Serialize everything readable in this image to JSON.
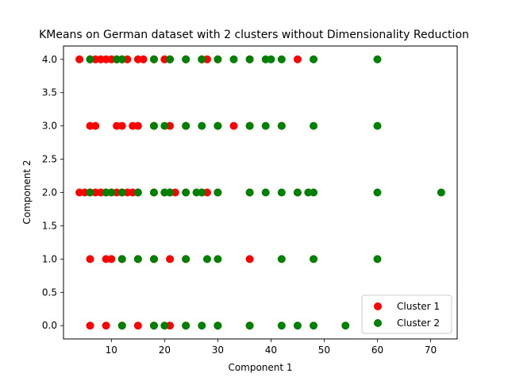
{
  "chart_data": {
    "type": "scatter",
    "title": "KMeans on German dataset with 2 clusters without Dimensionality Reduction",
    "xlabel": "Component 1",
    "ylabel": "Component 2",
    "xlim": [
      1.0,
      75.0
    ],
    "ylim": [
      -0.2,
      4.2
    ],
    "xticks": [
      10,
      20,
      30,
      40,
      50,
      60,
      70
    ],
    "yticks": [
      0.0,
      0.5,
      1.0,
      1.5,
      2.0,
      2.5,
      3.0,
      3.5,
      4.0
    ],
    "xtick_labels": [
      "10",
      "20",
      "30",
      "40",
      "50",
      "60",
      "70"
    ],
    "ytick_labels": [
      "0.0",
      "0.5",
      "1.0",
      "1.5",
      "2.0",
      "2.5",
      "3.0",
      "3.5",
      "4.0"
    ],
    "grid": false,
    "legend_position": "lower right",
    "series": [
      {
        "name": "Cluster 1",
        "color": "#ff0000",
        "points": [
          [
            4,
            4
          ],
          [
            6,
            4
          ],
          [
            7,
            4
          ],
          [
            8,
            4
          ],
          [
            9,
            4
          ],
          [
            10,
            4
          ],
          [
            11,
            4
          ],
          [
            12,
            4
          ],
          [
            13,
            4
          ],
          [
            15,
            4
          ],
          [
            16,
            4
          ],
          [
            18,
            4
          ],
          [
            20,
            4
          ],
          [
            21,
            4
          ],
          [
            24,
            4
          ],
          [
            27,
            4
          ],
          [
            28,
            4
          ],
          [
            30,
            4
          ],
          [
            36,
            4
          ],
          [
            45,
            4
          ],
          [
            6,
            3
          ],
          [
            7,
            3
          ],
          [
            11,
            3
          ],
          [
            12,
            3
          ],
          [
            14,
            3
          ],
          [
            15,
            3
          ],
          [
            18,
            3
          ],
          [
            21,
            3
          ],
          [
            24,
            3
          ],
          [
            30,
            3
          ],
          [
            33,
            3
          ],
          [
            36,
            3
          ],
          [
            42,
            3
          ],
          [
            4,
            2
          ],
          [
            5,
            2
          ],
          [
            6,
            2
          ],
          [
            7,
            2
          ],
          [
            8,
            2
          ],
          [
            9,
            2
          ],
          [
            10,
            2
          ],
          [
            11,
            2
          ],
          [
            12,
            2
          ],
          [
            13,
            2
          ],
          [
            14,
            2
          ],
          [
            15,
            2
          ],
          [
            18,
            2
          ],
          [
            20,
            2
          ],
          [
            21,
            2
          ],
          [
            22,
            2
          ],
          [
            24,
            2
          ],
          [
            27,
            2
          ],
          [
            28,
            2
          ],
          [
            30,
            2
          ],
          [
            36,
            2
          ],
          [
            45,
            2
          ],
          [
            6,
            1
          ],
          [
            9,
            1
          ],
          [
            10,
            1
          ],
          [
            12,
            1
          ],
          [
            15,
            1
          ],
          [
            18,
            1
          ],
          [
            21,
            1
          ],
          [
            24,
            1
          ],
          [
            36,
            1
          ],
          [
            6,
            0
          ],
          [
            9,
            0
          ],
          [
            12,
            0
          ],
          [
            15,
            0
          ],
          [
            18,
            0
          ],
          [
            21,
            0
          ],
          [
            24,
            0
          ],
          [
            30,
            0
          ],
          [
            36,
            0
          ]
        ]
      },
      {
        "name": "Cluster 2",
        "color": "#008000",
        "points": [
          [
            6,
            4
          ],
          [
            11,
            4
          ],
          [
            12,
            4
          ],
          [
            18,
            4
          ],
          [
            21,
            4
          ],
          [
            24,
            4
          ],
          [
            27,
            4
          ],
          [
            30,
            4
          ],
          [
            33,
            4
          ],
          [
            36,
            4
          ],
          [
            39,
            4
          ],
          [
            40,
            4
          ],
          [
            42,
            4
          ],
          [
            48,
            4
          ],
          [
            60,
            4
          ],
          [
            18,
            3
          ],
          [
            20,
            3
          ],
          [
            24,
            3
          ],
          [
            27,
            3
          ],
          [
            30,
            3
          ],
          [
            36,
            3
          ],
          [
            39,
            3
          ],
          [
            42,
            3
          ],
          [
            48,
            3
          ],
          [
            60,
            3
          ],
          [
            6,
            2
          ],
          [
            9,
            2
          ],
          [
            10,
            2
          ],
          [
            12,
            2
          ],
          [
            15,
            2
          ],
          [
            18,
            2
          ],
          [
            20,
            2
          ],
          [
            21,
            2
          ],
          [
            24,
            2
          ],
          [
            26,
            2
          ],
          [
            27,
            2
          ],
          [
            30,
            2
          ],
          [
            36,
            2
          ],
          [
            39,
            2
          ],
          [
            42,
            2
          ],
          [
            45,
            2
          ],
          [
            47,
            2
          ],
          [
            48,
            2
          ],
          [
            60,
            2
          ],
          [
            72,
            2
          ],
          [
            12,
            1
          ],
          [
            15,
            1
          ],
          [
            18,
            1
          ],
          [
            24,
            1
          ],
          [
            28,
            1
          ],
          [
            30,
            1
          ],
          [
            42,
            1
          ],
          [
            48,
            1
          ],
          [
            60,
            1
          ],
          [
            12,
            0
          ],
          [
            18,
            0
          ],
          [
            20,
            0
          ],
          [
            24,
            0
          ],
          [
            27,
            0
          ],
          [
            30,
            0
          ],
          [
            36,
            0
          ],
          [
            42,
            0
          ],
          [
            45,
            0
          ],
          [
            48,
            0
          ],
          [
            54,
            0
          ]
        ]
      }
    ]
  }
}
